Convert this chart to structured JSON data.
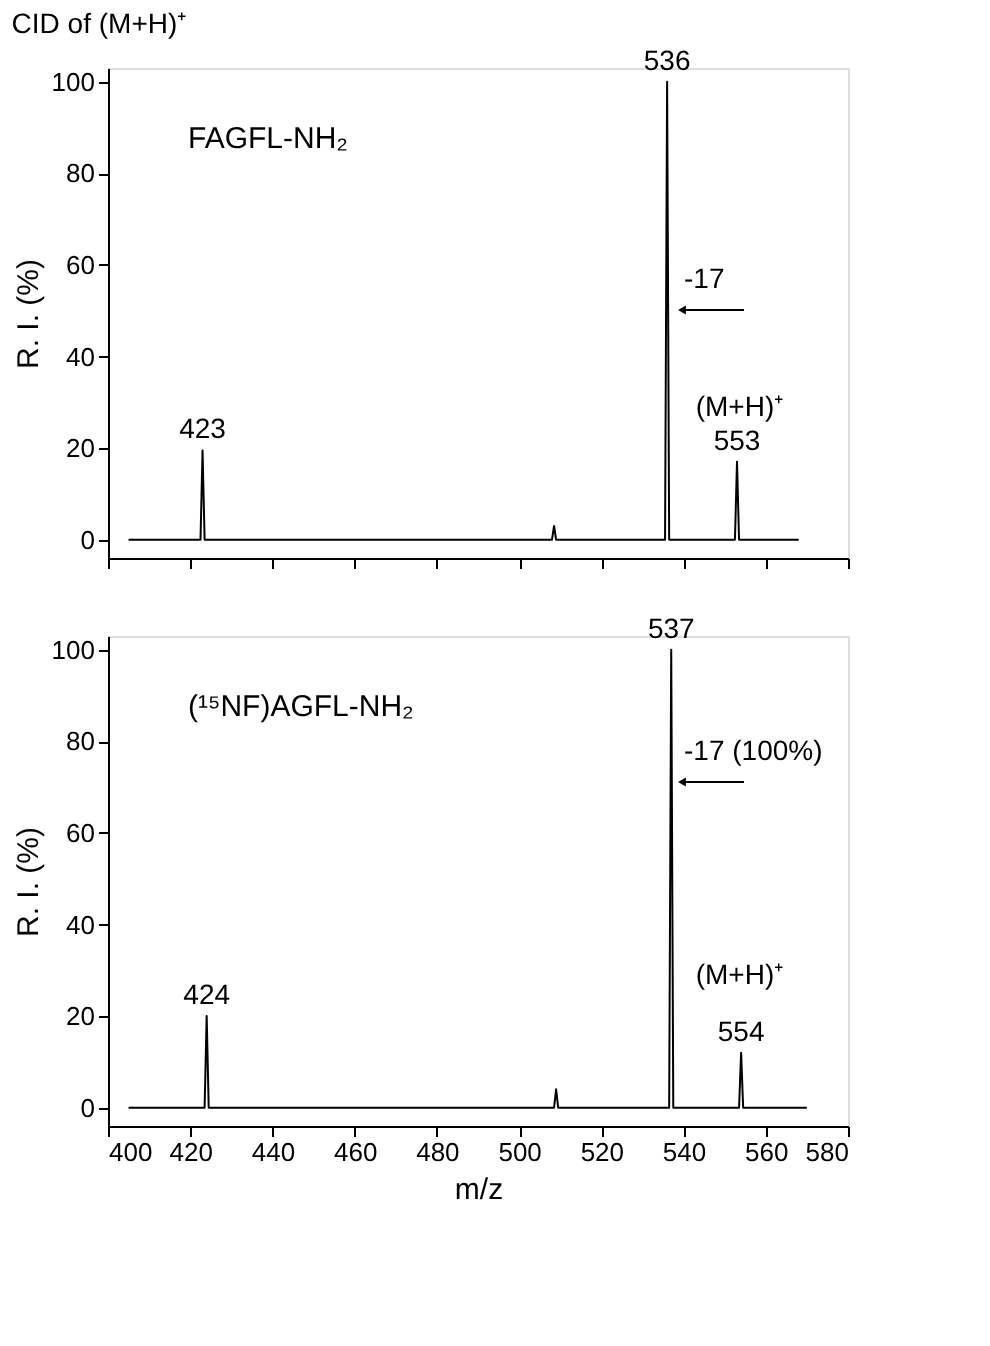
{
  "chart_data": [
    {
      "type": "line",
      "title": "CID of (M+H)⁺",
      "ylabel": "R. I. (%)",
      "xlim": [
        400,
        580
      ],
      "ylim": [
        -4,
        103
      ],
      "xticks": [
        400,
        420,
        440,
        460,
        480,
        500,
        520,
        540,
        560,
        580
      ],
      "yticks": [
        0,
        20,
        40,
        60,
        80,
        100
      ],
      "tick_labels": "y",
      "grid": false,
      "series": [
        {
          "color": "#000000",
          "x": [
            405,
            422.5,
            423,
            423.5,
            508,
            508.5,
            509,
            535.5,
            536,
            536.5,
            552.5,
            553,
            553.5,
            568
          ],
          "values": [
            0,
            0,
            19.5,
            0,
            0,
            3,
            0,
            0,
            100,
            0,
            0,
            17,
            0,
            0
          ]
        }
      ],
      "annotations": [
        "FAGFL-NH₂",
        {
          "text": "423",
          "x": 423,
          "y": 19.5
        },
        {
          "text": "536",
          "x": 536,
          "y": 100
        },
        {
          "text": "553",
          "x": 553,
          "y": 17
        },
        "(M+H)⁺",
        "-17"
      ]
    },
    {
      "type": "line",
      "xlabel": "m/z",
      "ylabel": "R. I. (%)",
      "xlim": [
        400,
        580
      ],
      "ylim": [
        -4,
        103
      ],
      "xticks": [
        400,
        420,
        440,
        460,
        480,
        500,
        520,
        540,
        560,
        580
      ],
      "yticks": [
        0,
        20,
        40,
        60,
        80,
        100
      ],
      "grid": false,
      "series": [
        {
          "color": "#000000",
          "x": [
            405,
            423.5,
            424,
            424.5,
            508.5,
            509,
            509.5,
            536.5,
            537,
            537.5,
            553.5,
            554,
            554.5,
            570
          ],
          "values": [
            0,
            0,
            20,
            0,
            0,
            4,
            0,
            0,
            100,
            0,
            0,
            12,
            0,
            0
          ]
        }
      ],
      "annotations": [
        "(¹⁵NF)AGFL-NH₂",
        {
          "text": "424",
          "x": 424,
          "y": 20
        },
        {
          "text": "537",
          "x": 537,
          "y": 100
        },
        {
          "text": "554",
          "x": 554,
          "y": 12
        },
        "(M+H)⁺",
        "-17 (100%)"
      ]
    }
  ]
}
